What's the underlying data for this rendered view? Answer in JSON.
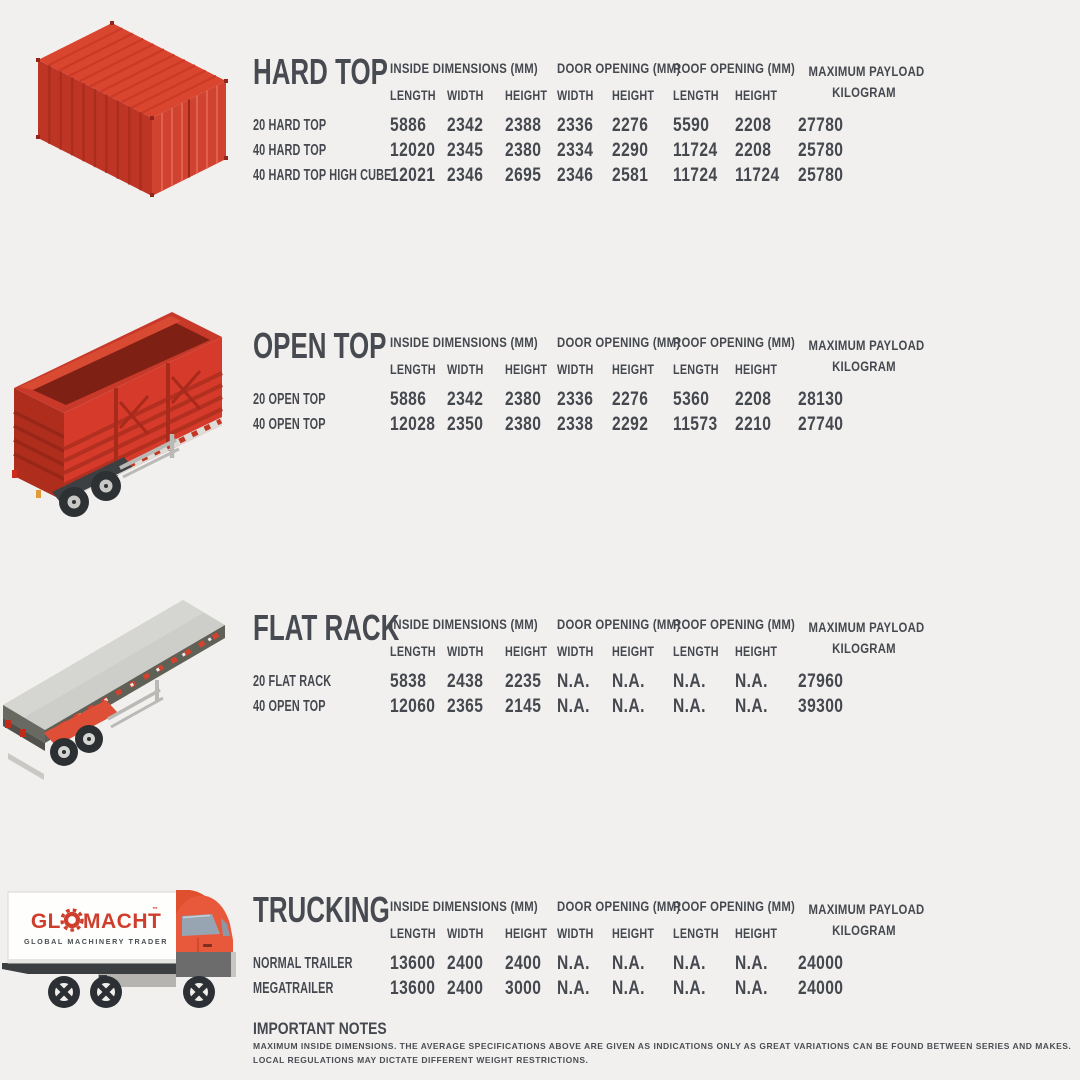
{
  "colors": {
    "background": "#f1f0ee",
    "text": "#45494f",
    "container_red": "#d9452e",
    "container_red_dark": "#bf3525",
    "trailer_red": "#d63a2a",
    "cab_orange": "#e8583a",
    "platform_gray": "#cdcdca",
    "logo_red": "#cf3e2d"
  },
  "table_headers": {
    "inside_dimensions": "INSIDE DIMENSIONS (MM)",
    "door_opening": "DOOR OPENING (MM)",
    "roof_opening": "ROOF OPENING (MM)",
    "max_payload_line1": "MAXIMUM PAYLOAD",
    "max_payload_line2": "KILOGRAM",
    "sub_labels": [
      "LENGTH",
      "WIDTH",
      "HEIGHT",
      "WIDTH",
      "HEIGHT",
      "LENGTH",
      "HEIGHT"
    ]
  },
  "sections": [
    {
      "title": "HARD TOP",
      "illustration": "hard-top-container",
      "rows": [
        {
          "label": "20 HARD TOP",
          "values": [
            "5886",
            "2342",
            "2388",
            "2336",
            "2276",
            "5590",
            "2208",
            "27780"
          ]
        },
        {
          "label": "40 HARD TOP",
          "values": [
            "12020",
            "2345",
            "2380",
            "2334",
            "2290",
            "11724",
            "2208",
            "25780"
          ]
        },
        {
          "label": "40 HARD TOP HIGH CUBE",
          "values": [
            "12021",
            "2346",
            "2695",
            "2346",
            "2581",
            "11724",
            "11724",
            "25780"
          ]
        }
      ]
    },
    {
      "title": "OPEN TOP",
      "illustration": "open-top-trailer",
      "rows": [
        {
          "label": "20 OPEN TOP",
          "values": [
            "5886",
            "2342",
            "2380",
            "2336",
            "2276",
            "5360",
            "2208",
            "28130"
          ]
        },
        {
          "label": "40 OPEN TOP",
          "values": [
            "12028",
            "2350",
            "2380",
            "2338",
            "2292",
            "11573",
            "2210",
            "27740"
          ]
        }
      ]
    },
    {
      "title": "FLAT RACK",
      "illustration": "flat-rack-trailer",
      "rows": [
        {
          "label": "20 FLAT RACK",
          "values": [
            "5838",
            "2438",
            "2235",
            "N.A.",
            "N.A.",
            "N.A.",
            "N.A.",
            "27960"
          ]
        },
        {
          "label": "40 OPEN TOP",
          "values": [
            "12060",
            "2365",
            "2145",
            "N.A.",
            "N.A.",
            "N.A.",
            "N.A.",
            "39300"
          ]
        }
      ]
    },
    {
      "title": "TRUCKING",
      "illustration": "glomacht-box-truck",
      "rows": [
        {
          "label": "NORMAL TRAILER",
          "values": [
            "13600",
            "2400",
            "2400",
            "N.A.",
            "N.A.",
            "N.A.",
            "N.A.",
            "24000"
          ]
        },
        {
          "label": "MEGATRAILER",
          "values": [
            "13600",
            "2400",
            "3000",
            "N.A.",
            "N.A.",
            "N.A.",
            "N.A.",
            "24000"
          ]
        }
      ]
    }
  ],
  "truck_logo": {
    "brand_left": "GL",
    "brand_right": "MACHT",
    "trademark": "™",
    "tagline": "GLOBAL MACHINERY TRADER"
  },
  "notes": {
    "title": "IMPORTANT NOTES",
    "lines": [
      "MAXIMUM INSIDE DIMENSIONS. THE AVERAGE SPECIFICATIONS ABOVE ARE GIVEN AS INDICATIONS ONLY AS GREAT VARIATIONS CAN BE FOUND BETWEEN SERIES AND MAKES.",
      "LOCAL REGULATIONS MAY DICTATE DIFFERENT WEIGHT RESTRICTIONS."
    ]
  }
}
